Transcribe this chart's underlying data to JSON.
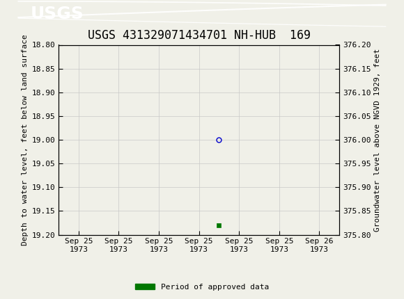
{
  "title": "USGS 431329071434701 NH-HUB  169",
  "ylabel_left": "Depth to water level, feet below land surface",
  "ylabel_right": "Groundwater level above NGVD 1929, feet",
  "ylim_left_top": 18.8,
  "ylim_left_bottom": 19.2,
  "ylim_right_top": 376.2,
  "ylim_right_bottom": 375.8,
  "yticks_left": [
    18.8,
    18.85,
    18.9,
    18.95,
    19.0,
    19.05,
    19.1,
    19.15,
    19.2
  ],
  "yticks_right": [
    376.2,
    376.15,
    376.1,
    376.05,
    376.0,
    375.95,
    375.9,
    375.85,
    375.8
  ],
  "data_point_x": 3.5,
  "data_point_y_depth": 19.0,
  "data_point_color": "#0000cc",
  "approved_x": 3.5,
  "approved_y_depth": 19.18,
  "approved_color": "#007700",
  "background_color": "#f0f0e8",
  "plot_bg_color": "#f0f0e8",
  "grid_color": "#c8c8c8",
  "header_bg_color": "#006633",
  "header_text_color": "#ffffff",
  "xtick_labels": [
    "Sep 25\n1973",
    "Sep 25\n1973",
    "Sep 25\n1973",
    "Sep 25\n1973",
    "Sep 25\n1973",
    "Sep 25\n1973",
    "Sep 26\n1973"
  ],
  "xtick_positions": [
    0,
    1,
    2,
    3,
    4,
    5,
    6
  ],
  "title_fontsize": 12,
  "axis_label_fontsize": 8,
  "tick_fontsize": 8,
  "legend_label": "Period of approved data",
  "font_family": "monospace"
}
